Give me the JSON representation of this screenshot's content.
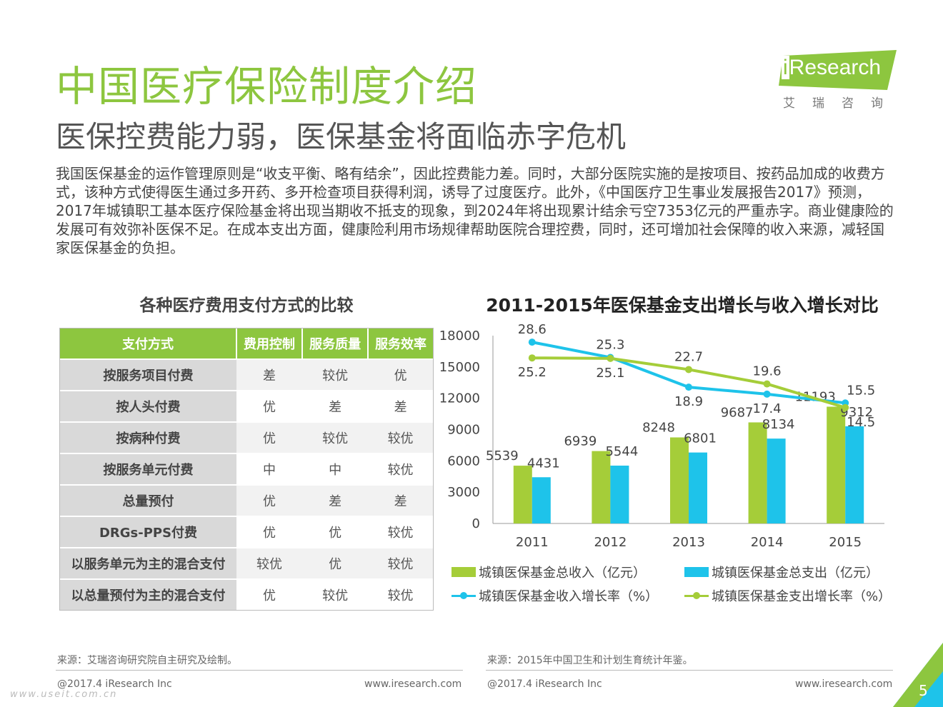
{
  "header": {
    "title": "中国医疗保险制度介绍",
    "subtitle": "医保控费能力弱，医保基金将面临赤字危机"
  },
  "logo": {
    "brand_i": "i",
    "brand_rest": "Research",
    "cn": "艾瑞咨询",
    "color": "#8dc63f"
  },
  "paragraph": "我国医保基金的运作管理原则是“收支平衡、略有结余”，因此控费能力差。同时，大部分医院实施的是按项目、按药品加成的收费方式，该种方式使得医生通过多开药、多开检查项目获得利润，诱导了过度医疗。此外，《中国医疗卫生事业发展报告2017》预测，2017年城镇职工基本医疗保险基金将出现当期收不抵支的现象，到2024年将出现累计结余亏空7353亿元的严重赤字。商业健康险的发展可有效弥补医保不足。在成本支出方面，健康险利用市场规律帮助医院合理控费，同时，还可增加社会保障的收入来源，减轻国家医保基金的负担。",
  "table": {
    "title": "各种医疗费用支付方式的比较",
    "headers": [
      "支付方式",
      "费用控制",
      "服务质量",
      "服务效率"
    ],
    "rows": [
      [
        "按服务项目付费",
        "差",
        "较优",
        "优"
      ],
      [
        "按人头付费",
        "优",
        "差",
        "差"
      ],
      [
        "按病种付费",
        "优",
        "较优",
        "较优"
      ],
      [
        "按服务单元付费",
        "中",
        "中",
        "较优"
      ],
      [
        "总量预付",
        "优",
        "差",
        "差"
      ],
      [
        "DRGs-PPS付费",
        "优",
        "优",
        "较优"
      ],
      [
        "以服务单元为主的混合支付",
        "较优",
        "优",
        "较优"
      ],
      [
        "以总量预付为主的混合支付",
        "优",
        "较优",
        "较优"
      ]
    ]
  },
  "chart_data": {
    "type": "bar",
    "title": "2011-2015年医保基金支出增长与收入增长对比",
    "categories": [
      "2011",
      "2012",
      "2013",
      "2014",
      "2015"
    ],
    "ylim": [
      0,
      18000
    ],
    "yticks": [
      "0",
      "3000",
      "6000",
      "9000",
      "12000",
      "15000",
      "18000"
    ],
    "series": [
      {
        "name": "城镇医保基金总收入（亿元）",
        "type": "bar",
        "color": "#a5cd39",
        "values": [
          5539,
          6939,
          8248,
          9687,
          11193
        ],
        "labels": [
          "5539",
          "6939",
          "8248",
          "9687",
          "11193"
        ]
      },
      {
        "name": "城镇医保基金总支出（亿元）",
        "type": "bar",
        "color": "#1ec3ea",
        "values": [
          4431,
          5544,
          6801,
          8134,
          9312
        ],
        "labels": [
          "4431",
          "5544",
          "6801",
          "8134",
          "9312"
        ]
      },
      {
        "name": "城镇医保基金收入增长率（%）",
        "type": "line",
        "color": "#1ec3ea",
        "values": [
          28.6,
          25.3,
          18.9,
          17.4,
          15.5
        ],
        "labels": [
          "28.6",
          "25.3",
          "18.9",
          "17.4",
          "15.5"
        ]
      },
      {
        "name": "城镇医保基金支出增长率（%）",
        "type": "line",
        "color": "#a5cd39",
        "values": [
          25.2,
          25.1,
          22.7,
          19.6,
          14.5
        ],
        "labels": [
          "25.2",
          "25.1",
          "22.7",
          "19.6",
          "14.5"
        ]
      }
    ]
  },
  "footer": {
    "source_left": "来源：艾瑞咨询研究院自主研究及绘制。",
    "source_right": "来源：2015年中国卫生和计划生育统计年鉴。",
    "copyright_left": "@2017.4 iResearch Inc",
    "url_left": "www.iresearch.com",
    "copyright_right": "@2017.4 iResearch Inc",
    "url_right": "www.iresearch.com",
    "page": "5",
    "watermark": "www.useit.com.cn"
  }
}
